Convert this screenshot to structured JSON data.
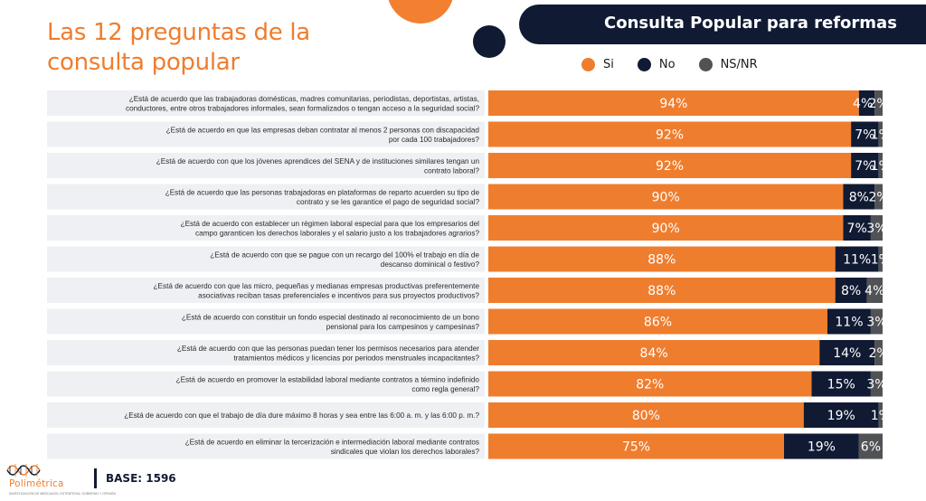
{
  "page": {
    "title_line1": "Las 12 preguntas de la",
    "title_line2": "consulta popular",
    "banner": "Consulta Popular para reformas",
    "base": "BASE: 1596"
  },
  "logo": {
    "name": "Polimétrica",
    "tagline": "INVESTIGACIÓN DE MERCADOS, ESTRATEGIA, GOBIERNO Y OPINIÓN"
  },
  "colors": {
    "si": "#ef7d2e",
    "no": "#101a33",
    "nsnr": "#505256",
    "accent": "#ef7d2e"
  },
  "chart_data": {
    "type": "bar",
    "orientation": "horizontal",
    "stacked": true,
    "legend_position": "top-right",
    "xlim": [
      0,
      100
    ],
    "series": [
      {
        "name": "Si",
        "values": [
          94,
          92,
          92,
          90,
          90,
          88,
          88,
          86,
          84,
          82,
          80,
          75
        ]
      },
      {
        "name": "No",
        "values": [
          4,
          7,
          7,
          8,
          7,
          11,
          8,
          11,
          14,
          15,
          19,
          19
        ]
      },
      {
        "name": "NS/NR",
        "values": [
          2,
          1,
          1,
          2,
          3,
          1,
          4,
          3,
          2,
          3,
          1,
          6
        ]
      }
    ],
    "categories": [
      [
        "¿Está de acuerdo que las trabajadoras domésticas, madres comunitarias, periodistas, deportistas, artistas,",
        "conductores, entre otros trabajadores informales, sean formalizados o tengan acceso a la seguridad social?"
      ],
      [
        "¿Está de acuerdo en que las empresas deban contratar al menos 2 personas con discapacidad",
        "por cada 100 trabajadores?"
      ],
      [
        "¿Está de acuerdo con que los jóvenes aprendices del SENA y de instituciones similares tengan un",
        "contrato laboral?"
      ],
      [
        "¿Está de acuerdo que las personas trabajadoras en plataformas de reparto acuerden su tipo de",
        "contrato y se les garantice el pago de seguridad social?"
      ],
      [
        "¿Está de acuerdo con establecer un régimen laboral especial para que los empresarios del",
        "campo garanticen los derechos laborales y el salario justo a los trabajadores agrarios?"
      ],
      [
        "¿Está de acuerdo con que se pague con un recargo del 100% el trabajo en día de",
        "descanso dominical o festivo?"
      ],
      [
        "¿Está de acuerdo con que las micro, pequeñas y medianas empresas productivas preferentemente",
        "asociativas reciban tasas preferenciales e incentivos para sus proyectos productivos?"
      ],
      [
        "¿Está de acuerdo con constituir un fondo especial destinado al reconocimiento de un bono",
        "pensional para los campesinos y campesinas?"
      ],
      [
        "¿Está de acuerdo con que las personas puedan tener los permisos necesarios para atender",
        "tratamientos médicos y licencias por periodos menstruales incapacitantes?"
      ],
      [
        "¿Está de acuerdo en promover la estabilidad laboral mediante contratos a término indefinido",
        "como regla general?"
      ],
      [
        "¿Está de acuerdo con que el trabajo de día dure máximo 8 horas y sea entre las 6:00 a. m. y las 6:00 p. m.?"
      ],
      [
        "¿Está de acuerdo en eliminar la tercerización e intermediación laboral mediante contratos",
        "sindicales que violan los derechos laborales?"
      ]
    ]
  }
}
